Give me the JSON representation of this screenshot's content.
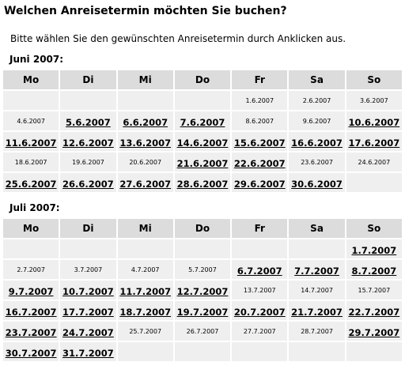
{
  "header": {
    "title": "Welchen Anreisetermin möchten Sie buchen?",
    "intro": "Bitte wählen Sie den gewünschten Anreisetermin durch Anklicken aus."
  },
  "weekdays": [
    "Mo",
    "Di",
    "Mi",
    "Do",
    "Fr",
    "Sa",
    "So"
  ],
  "months": [
    {
      "label": "Juni 2007:",
      "weeks": [
        [
          null,
          null,
          null,
          null,
          {
            "text": "1.6.2007",
            "link": false
          },
          {
            "text": "2.6.2007",
            "link": false
          },
          {
            "text": "3.6.2007",
            "link": false
          }
        ],
        [
          {
            "text": "4.6.2007",
            "link": false
          },
          {
            "text": "5.6.2007",
            "link": true
          },
          {
            "text": "6.6.2007",
            "link": true
          },
          {
            "text": "7.6.2007",
            "link": true
          },
          {
            "text": "8.6.2007",
            "link": false
          },
          {
            "text": "9.6.2007",
            "link": false
          },
          {
            "text": "10.6.2007",
            "link": true
          }
        ],
        [
          {
            "text": "11.6.2007",
            "link": true
          },
          {
            "text": "12.6.2007",
            "link": true
          },
          {
            "text": "13.6.2007",
            "link": true
          },
          {
            "text": "14.6.2007",
            "link": true
          },
          {
            "text": "15.6.2007",
            "link": true
          },
          {
            "text": "16.6.2007",
            "link": true
          },
          {
            "text": "17.6.2007",
            "link": true
          }
        ],
        [
          {
            "text": "18.6.2007",
            "link": false
          },
          {
            "text": "19.6.2007",
            "link": false
          },
          {
            "text": "20.6.2007",
            "link": false
          },
          {
            "text": "21.6.2007",
            "link": true
          },
          {
            "text": "22.6.2007",
            "link": true
          },
          {
            "text": "23.6.2007",
            "link": false
          },
          {
            "text": "24.6.2007",
            "link": false
          }
        ],
        [
          {
            "text": "25.6.2007",
            "link": true
          },
          {
            "text": "26.6.2007",
            "link": true
          },
          {
            "text": "27.6.2007",
            "link": true
          },
          {
            "text": "28.6.2007",
            "link": true
          },
          {
            "text": "29.6.2007",
            "link": true
          },
          {
            "text": "30.6.2007",
            "link": true
          },
          null
        ]
      ]
    },
    {
      "label": "Juli 2007:",
      "weeks": [
        [
          null,
          null,
          null,
          null,
          null,
          null,
          {
            "text": "1.7.2007",
            "link": true
          }
        ],
        [
          {
            "text": "2.7.2007",
            "link": false
          },
          {
            "text": "3.7.2007",
            "link": false
          },
          {
            "text": "4.7.2007",
            "link": false
          },
          {
            "text": "5.7.2007",
            "link": false
          },
          {
            "text": "6.7.2007",
            "link": true
          },
          {
            "text": "7.7.2007",
            "link": true
          },
          {
            "text": "8.7.2007",
            "link": true
          }
        ],
        [
          {
            "text": "9.7.2007",
            "link": true
          },
          {
            "text": "10.7.2007",
            "link": true
          },
          {
            "text": "11.7.2007",
            "link": true
          },
          {
            "text": "12.7.2007",
            "link": true
          },
          {
            "text": "13.7.2007",
            "link": false
          },
          {
            "text": "14.7.2007",
            "link": false
          },
          {
            "text": "15.7.2007",
            "link": false
          }
        ],
        [
          {
            "text": "16.7.2007",
            "link": true
          },
          {
            "text": "17.7.2007",
            "link": true
          },
          {
            "text": "18.7.2007",
            "link": true
          },
          {
            "text": "19.7.2007",
            "link": true
          },
          {
            "text": "20.7.2007",
            "link": true
          },
          {
            "text": "21.7.2007",
            "link": true
          },
          {
            "text": "22.7.2007",
            "link": true
          }
        ],
        [
          {
            "text": "23.7.2007",
            "link": true
          },
          {
            "text": "24.7.2007",
            "link": true
          },
          {
            "text": "25.7.2007",
            "link": false
          },
          {
            "text": "26.7.2007",
            "link": false
          },
          {
            "text": "27.7.2007",
            "link": false
          },
          {
            "text": "28.7.2007",
            "link": false
          },
          {
            "text": "29.7.2007",
            "link": true
          }
        ],
        [
          {
            "text": "30.7.2007",
            "link": true
          },
          {
            "text": "31.7.2007",
            "link": true
          },
          null,
          null,
          null,
          null,
          null
        ]
      ]
    }
  ]
}
